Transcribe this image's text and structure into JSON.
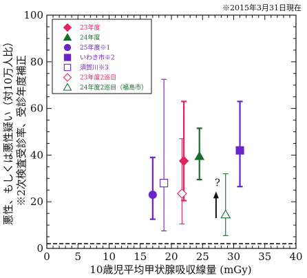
{
  "chart_data": {
    "type": "scatter",
    "note": "※2015年3月31日現在",
    "xlabel": "10歳児平均甲状腺吸収線量 (mGy)",
    "ylabel_lines": [
      "悪性、もしくは悪性疑い（対10万人比）",
      "※2次検査受診率、受診年度補正"
    ],
    "xlim": [
      0,
      40
    ],
    "ylim": [
      0,
      100
    ],
    "xticks": [
      "0",
      "5",
      "10",
      "15",
      "20",
      "25",
      "30",
      "35",
      "40"
    ],
    "yticks": [
      "0",
      "20",
      "40",
      "60",
      "80",
      "100"
    ],
    "reference_line_y": 2,
    "series": [
      {
        "name": "23年度",
        "marker": "diamond",
        "filled": true,
        "color": "#e0245e",
        "x": 22.0,
        "y": 37.5,
        "ylow": 20.5,
        "yhigh": 63
      },
      {
        "name": "24年度",
        "marker": "triangle",
        "filled": true,
        "color": "#166d2d",
        "x": 24.5,
        "y": 39.5,
        "ylow": 29.5,
        "yhigh": 51.5
      },
      {
        "name": "25年度※1",
        "marker": "circle",
        "filled": true,
        "color": "#6a23c9",
        "x": 17.0,
        "y": 23,
        "ylow": 12.5,
        "yhigh": 39
      },
      {
        "name": "いわき市※2",
        "marker": "square",
        "filled": true,
        "color": "#6a23c9",
        "x": 31.0,
        "y": 42,
        "ylow": 26.5,
        "yhigh": 63
      },
      {
        "name": "須賀川※3",
        "marker": "square",
        "filled": false,
        "color": "#6a23c9",
        "x": 18.8,
        "y": 28,
        "ylow": 7.5,
        "yhigh": 72.5
      },
      {
        "name": "23年度2巡目",
        "marker": "diamond",
        "filled": false,
        "color": "#e0245e",
        "x": 21.7,
        "y": 23.5,
        "ylow": 10.5,
        "yhigh": 47
      },
      {
        "name": "24年度2巡目（福島市）",
        "marker": "triangle",
        "filled": false,
        "color": "#166d2d",
        "x": 28.7,
        "y": 14.5,
        "ylow": 5.5,
        "yhigh": 32
      }
    ],
    "annotation": {
      "text": "?",
      "x": 27.5,
      "y": 25
    }
  }
}
